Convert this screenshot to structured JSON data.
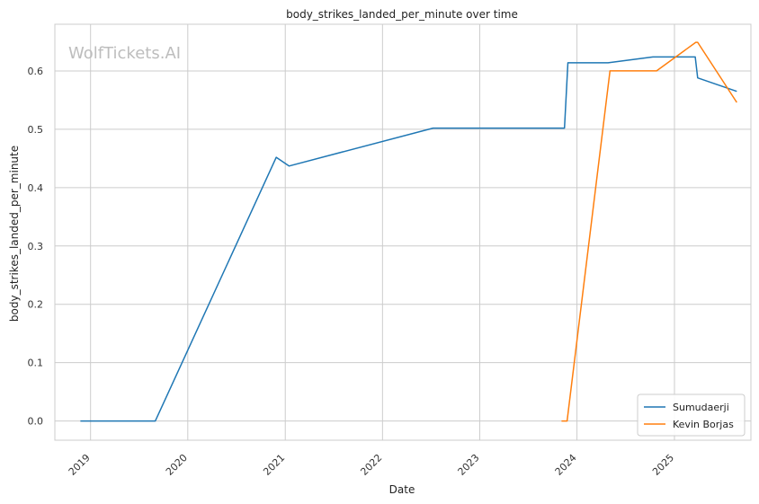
{
  "chart_data": {
    "type": "line",
    "title": "body_strikes_landed_per_minute over time",
    "xlabel": "Date",
    "ylabel": "body_strikes_landed_per_minute",
    "watermark": "WolfTickets.AI",
    "x_ticks": [
      "2019",
      "2020",
      "2021",
      "2022",
      "2023",
      "2024",
      "2025"
    ],
    "y_ticks": [
      "0.0",
      "0.1",
      "0.2",
      "0.3",
      "0.4",
      "0.5",
      "0.6"
    ],
    "xlim": [
      "2018-08-20",
      "2025-10-15"
    ],
    "ylim": [
      -0.033,
      0.68
    ],
    "grid": true,
    "legend_position": "bottom-right",
    "series": [
      {
        "name": "Sumudaerji",
        "color": "#1f77b4",
        "points": [
          {
            "x": "2018-11-24",
            "y": 0.0
          },
          {
            "x": "2019-09-01",
            "y": 0.0
          },
          {
            "x": "2020-11-28",
            "y": 0.452
          },
          {
            "x": "2021-01-15",
            "y": 0.437
          },
          {
            "x": "2022-07-10",
            "y": 0.502
          },
          {
            "x": "2023-11-15",
            "y": 0.502
          },
          {
            "x": "2023-11-28",
            "y": 0.614
          },
          {
            "x": "2024-04-27",
            "y": 0.614
          },
          {
            "x": "2024-10-12",
            "y": 0.624
          },
          {
            "x": "2025-03-20",
            "y": 0.624
          },
          {
            "x": "2025-03-29",
            "y": 0.588
          },
          {
            "x": "2025-08-23",
            "y": 0.565
          }
        ]
      },
      {
        "name": "Kevin Borjas",
        "color": "#ff7f0e",
        "points": [
          {
            "x": "2023-11-04",
            "y": 0.0
          },
          {
            "x": "2023-11-25",
            "y": 0.0
          },
          {
            "x": "2024-05-04",
            "y": 0.6
          },
          {
            "x": "2024-10-26",
            "y": 0.6
          },
          {
            "x": "2025-03-22",
            "y": 0.649
          },
          {
            "x": "2025-03-29",
            "y": 0.649
          },
          {
            "x": "2025-08-23",
            "y": 0.546
          }
        ]
      }
    ]
  }
}
